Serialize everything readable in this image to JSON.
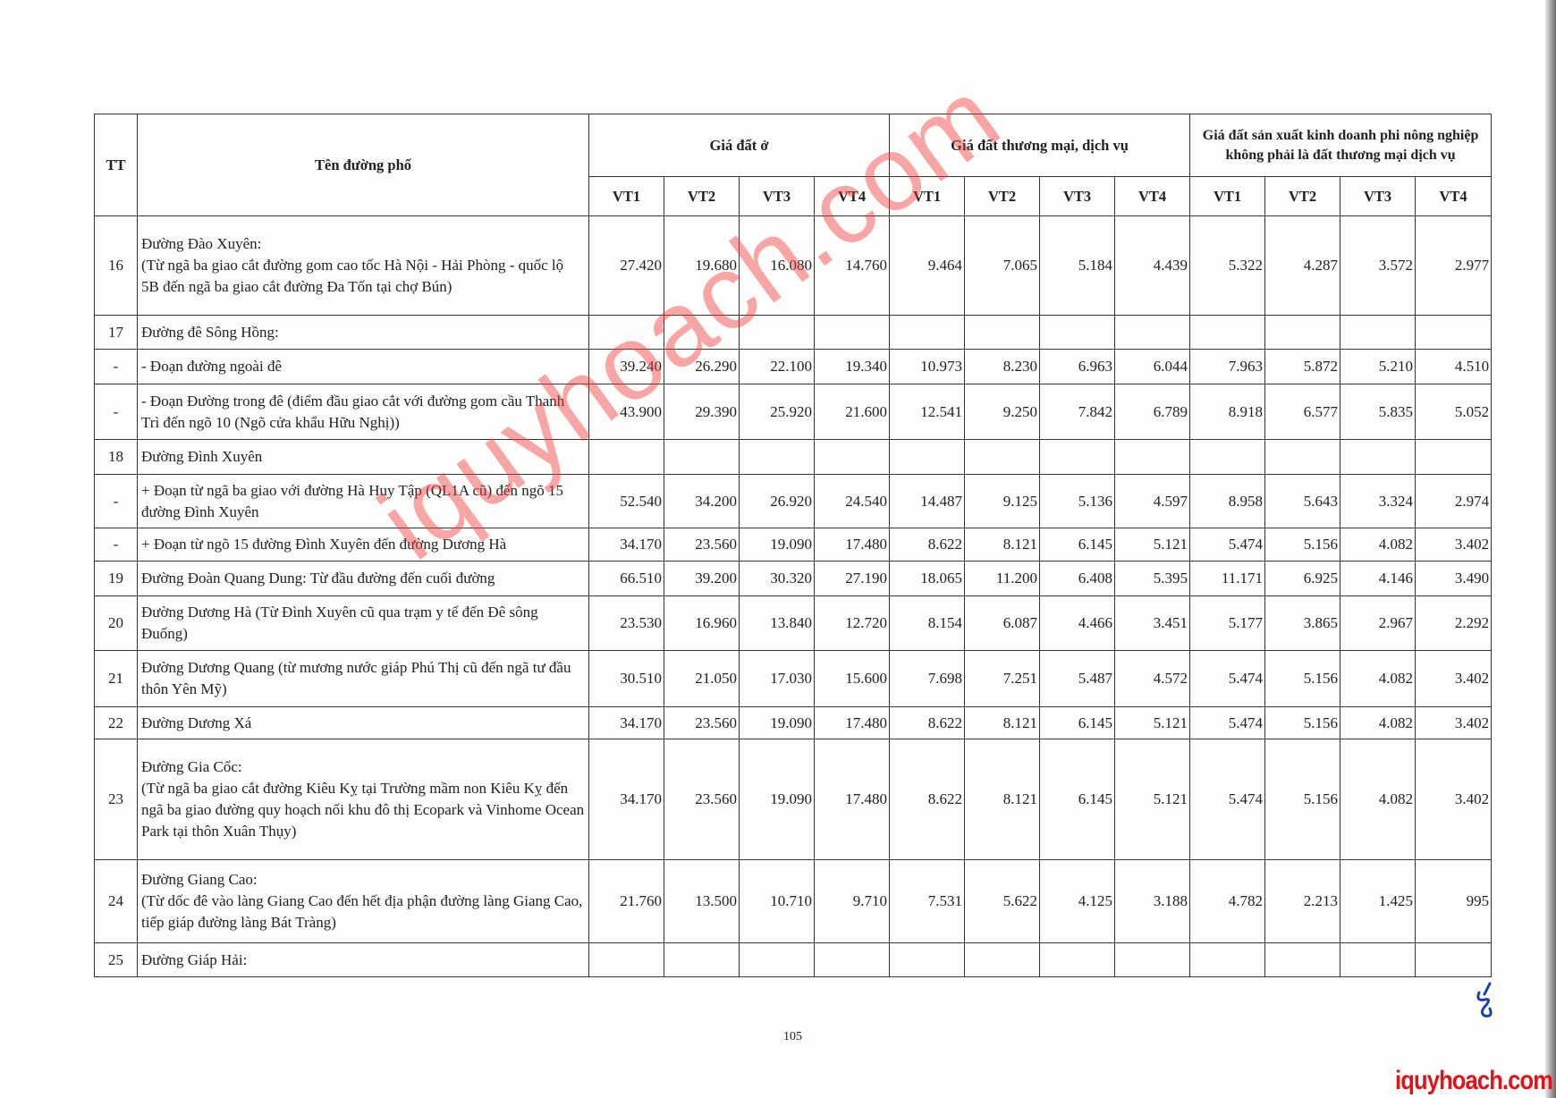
{
  "header": {
    "tt": "TT",
    "name": "Tên đường phố",
    "groups": [
      "Giá đất ở",
      "Giá đất thương mại, dịch vụ",
      "Giá đất sản xuất kinh doanh phi nông nghiệp không phải là đất thương mại dịch vụ"
    ],
    "sub": [
      "VT1",
      "VT2",
      "VT3",
      "VT4",
      "VT1",
      "VT2",
      "VT3",
      "VT4",
      "VT1",
      "VT2",
      "VT3",
      "VT4"
    ]
  },
  "rows": [
    {
      "tt": "16",
      "name": "Đường Đào Xuyên:\n(Từ ngã ba giao cắt đường gom cao tốc Hà Nội - Hải Phòng - quốc lộ 5B đến ngã ba giao cắt đường Đa Tốn tại chợ Bún)",
      "v": [
        "27.420",
        "19.680",
        "16.080",
        "14.760",
        "9.464",
        "7.065",
        "5.184",
        "4.439",
        "5.322",
        "4.287",
        "3.572",
        "2.977"
      ]
    },
    {
      "tt": "17",
      "name": "Đường đê Sông Hồng:",
      "v": [
        "",
        "",
        "",
        "",
        "",
        "",
        "",
        "",
        "",
        "",
        "",
        ""
      ]
    },
    {
      "tt": "-",
      "name": "- Đoạn đường ngoài đê",
      "v": [
        "39.240",
        "26.290",
        "22.100",
        "19.340",
        "10.973",
        "8.230",
        "6.963",
        "6.044",
        "7.963",
        "5.872",
        "5.210",
        "4.510"
      ]
    },
    {
      "tt": "-",
      "name": "- Đoạn Đường trong đê (điểm đầu giao cắt với đường gom cầu Thanh Trì đến ngõ 10 (Ngõ cửa khẩu Hữu Nghị))",
      "v": [
        "43.900",
        "29.390",
        "25.920",
        "21.600",
        "12.541",
        "9.250",
        "7.842",
        "6.789",
        "8.918",
        "6.577",
        "5.835",
        "5.052"
      ]
    },
    {
      "tt": "18",
      "name": "Đường Đình Xuyên",
      "v": [
        "",
        "",
        "",
        "",
        "",
        "",
        "",
        "",
        "",
        "",
        "",
        ""
      ]
    },
    {
      "tt": "-",
      "name": "+ Đoạn từ ngã ba giao với đường Hà Huy Tập (QL1A cũ) đến ngõ 15 đường Đình Xuyên",
      "v": [
        "52.540",
        "34.200",
        "26.920",
        "24.540",
        "14.487",
        "9.125",
        "5.136",
        "4.597",
        "8.958",
        "5.643",
        "3.324",
        "2.974"
      ]
    },
    {
      "tt": "-",
      "name": "+ Đoạn từ ngõ 15 đường Đình Xuyên đến đường Dương Hà",
      "v": [
        "34.170",
        "23.560",
        "19.090",
        "17.480",
        "8.622",
        "8.121",
        "6.145",
        "5.121",
        "5.474",
        "5.156",
        "4.082",
        "3.402"
      ]
    },
    {
      "tt": "19",
      "name": "Đường Đoàn Quang Dung: Từ đầu đường đến cuối đường",
      "v": [
        "66.510",
        "39.200",
        "30.320",
        "27.190",
        "18.065",
        "11.200",
        "6.408",
        "5.395",
        "11.171",
        "6.925",
        "4.146",
        "3.490"
      ]
    },
    {
      "tt": "20",
      "name": "Đường Dương Hà (Từ Đình Xuyên cũ qua trạm y tế đến Đê sông Đuống)",
      "v": [
        "23.530",
        "16.960",
        "13.840",
        "12.720",
        "8.154",
        "6.087",
        "4.466",
        "3.451",
        "5.177",
        "3.865",
        "2.967",
        "2.292"
      ]
    },
    {
      "tt": "21",
      "name": "Đường Dương Quang (từ mương nước giáp Phú Thị cũ đến ngã tư đầu thôn Yên Mỹ)",
      "v": [
        "30.510",
        "21.050",
        "17.030",
        "15.600",
        "7.698",
        "7.251",
        "5.487",
        "4.572",
        "5.474",
        "5.156",
        "4.082",
        "3.402"
      ]
    },
    {
      "tt": "22",
      "name": "Đường Dương Xá",
      "v": [
        "34.170",
        "23.560",
        "19.090",
        "17.480",
        "8.622",
        "8.121",
        "6.145",
        "5.121",
        "5.474",
        "5.156",
        "4.082",
        "3.402"
      ]
    },
    {
      "tt": "23",
      "name": "Đường Gia Cốc:\n(Từ ngã ba giao cắt đường Kiêu Kỵ tại Trường mầm non Kiêu Kỵ đến ngã ba giao đường quy hoạch nối khu đô thị Ecopark và Vinhome Ocean Park tại thôn Xuân Thụy)",
      "v": [
        "34.170",
        "23.560",
        "19.090",
        "17.480",
        "8.622",
        "8.121",
        "6.145",
        "5.121",
        "5.474",
        "5.156",
        "4.082",
        "3.402"
      ]
    },
    {
      "tt": "24",
      "name": "Đường Giang Cao:\n(Từ dốc đê vào làng Giang Cao đến hết địa phận đường làng Giang Cao, tiếp giáp đường làng Bát Tràng)",
      "v": [
        "21.760",
        "13.500",
        "10.710",
        "9.710",
        "7.531",
        "5.622",
        "4.125",
        "3.188",
        "4.782",
        "2.213",
        "1.425",
        "995"
      ]
    },
    {
      "tt": "25",
      "name": "Đường Giáp Hải:",
      "v": [
        "",
        "",
        "",
        "",
        "",
        "",
        "",
        "",
        "",
        "",
        "",
        ""
      ]
    }
  ],
  "page_number": "105",
  "watermark": "iquyhoach.com",
  "brand": "iquyhoach.com",
  "colors": {
    "watermark": "#f03c3c",
    "brand": "#e0121a",
    "signature": "#1a3fa8"
  }
}
